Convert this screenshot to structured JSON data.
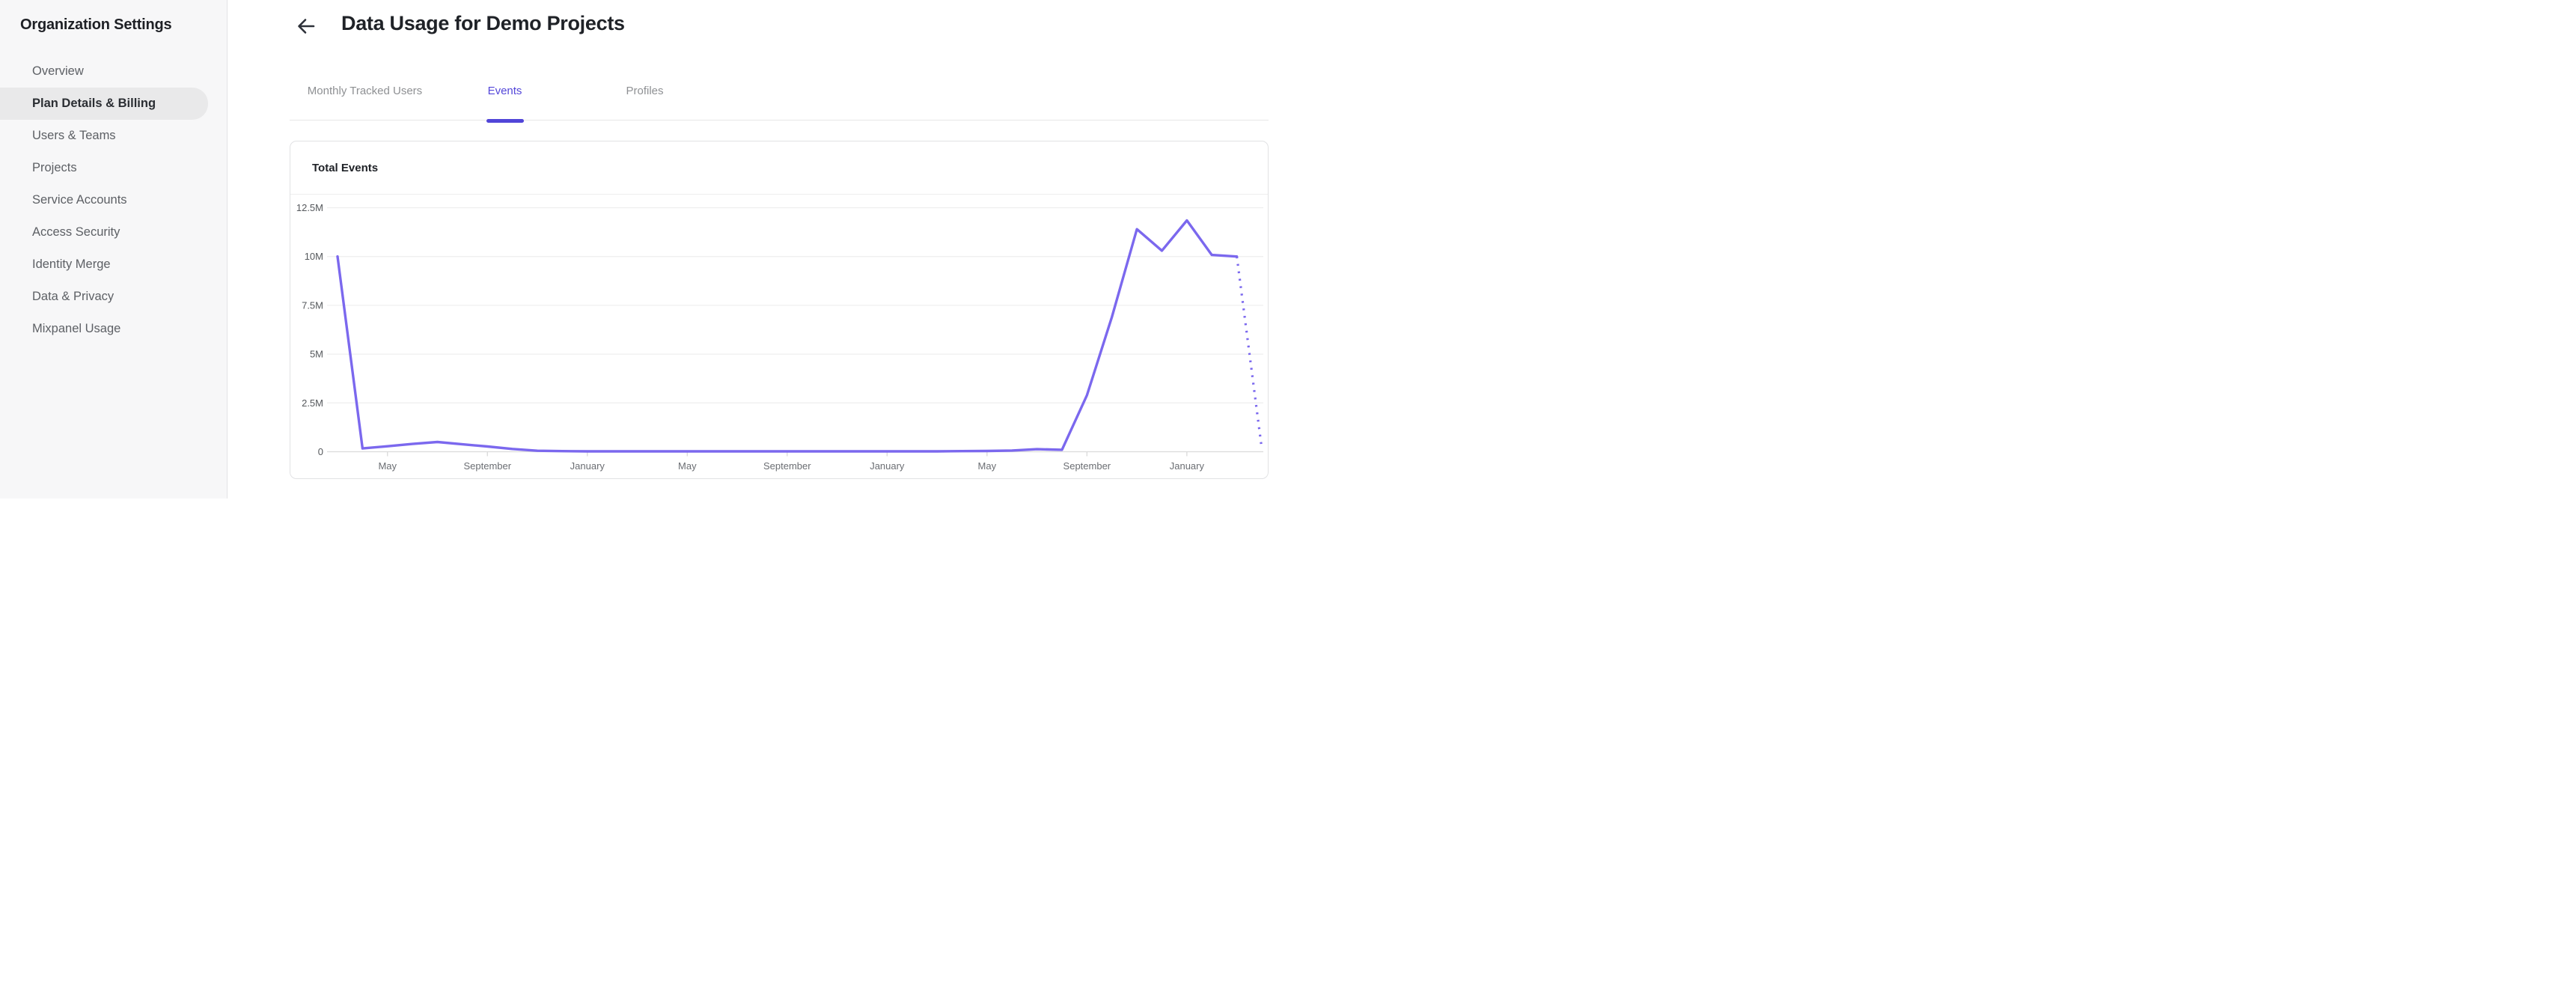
{
  "sidebar": {
    "title": "Organization Settings",
    "items": [
      {
        "label": "Overview",
        "active": false
      },
      {
        "label": "Plan Details & Billing",
        "active": true
      },
      {
        "label": "Users & Teams",
        "active": false
      },
      {
        "label": "Projects",
        "active": false
      },
      {
        "label": "Service Accounts",
        "active": false
      },
      {
        "label": "Access Security",
        "active": false
      },
      {
        "label": "Identity Merge",
        "active": false
      },
      {
        "label": "Data & Privacy",
        "active": false
      },
      {
        "label": "Mixpanel Usage",
        "active": false
      }
    ]
  },
  "header": {
    "back_icon": "left-arrow",
    "title": "Data Usage for Demo Projects"
  },
  "tabs": [
    {
      "label": "Monthly Tracked Users",
      "active": false
    },
    {
      "label": "Events",
      "active": true
    },
    {
      "label": "Profiles",
      "active": false
    }
  ],
  "card": {
    "title": "Total Events"
  },
  "colors": {
    "accent_tab": "#5346d9",
    "line": "#7b68ee",
    "sidebar_bg": "#f7f7f8",
    "selected_pill": "#e9e9ea",
    "gridline": "#efefef",
    "axis_line": "#dcdcdc",
    "tick": "#d9d9d9"
  },
  "chart_data": {
    "type": "line",
    "title": "Total Events",
    "ylabel": "",
    "xlabel": "",
    "unit": "events per month (millions)",
    "grid": "horizontal",
    "legend": "none",
    "ylim_millions": [
      0,
      12.5
    ],
    "y_tick_values_millions": [
      0,
      2.5,
      5,
      7.5,
      10,
      12.5
    ],
    "y_tick_labels": [
      "0",
      "2.5M",
      "5M",
      "7.5M",
      "10M",
      "12.5M"
    ],
    "x": [
      "Mar",
      "Apr",
      "May",
      "Jun",
      "Jul",
      "Aug",
      "Sep",
      "Oct",
      "Nov",
      "Dec",
      "Jan",
      "Feb",
      "Mar",
      "Apr",
      "May",
      "Jun",
      "Jul",
      "Aug",
      "Sep",
      "Oct",
      "Nov",
      "Dec",
      "Jan",
      "Feb",
      "Mar",
      "Apr",
      "May",
      "Jun",
      "Jul",
      "Aug",
      "Sep",
      "Oct",
      "Nov",
      "Dec",
      "Jan",
      "Feb",
      "Mar",
      "Apr"
    ],
    "x_tick_labels": [
      {
        "index": 2,
        "label": "May"
      },
      {
        "index": 6,
        "label": "September"
      },
      {
        "index": 10,
        "label": "January"
      },
      {
        "index": 14,
        "label": "May"
      },
      {
        "index": 18,
        "label": "September"
      },
      {
        "index": 22,
        "label": "January"
      },
      {
        "index": 26,
        "label": "May"
      },
      {
        "index": 30,
        "label": "September"
      },
      {
        "index": 34,
        "label": "January"
      }
    ],
    "values_millions": [
      10,
      0.17,
      0.28,
      0.4,
      0.5,
      0.38,
      0.27,
      0.14,
      0.05,
      0.03,
      0.02,
      0.02,
      0.02,
      0.02,
      0.02,
      0.02,
      0.02,
      0.02,
      0.02,
      0.02,
      0.02,
      0.02,
      0.02,
      0.02,
      0.02,
      0.03,
      0.04,
      0.06,
      0.13,
      0.1,
      2.9,
      6.9,
      11.4,
      10.3,
      11.85,
      10.08,
      10.0,
      0.15
    ],
    "last_segment_dotted_projection": true
  }
}
